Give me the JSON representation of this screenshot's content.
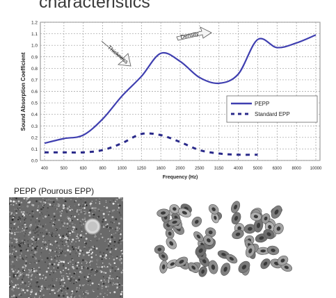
{
  "slide": {
    "title": "characteristics"
  },
  "photos": {
    "caption": "PEPP (Pourous EPP)"
  },
  "chart_data": {
    "type": "line",
    "title": "",
    "xlabel": "Frequency (Hz)",
    "ylabel": "Sound Absorption Coefficient",
    "categories": [
      "400",
      "500",
      "630",
      "800",
      "1000",
      "1250",
      "1600",
      "2000",
      "2500",
      "3150",
      "4000",
      "5000",
      "6300",
      "8000",
      "10000"
    ],
    "ylim": [
      0,
      1.2
    ],
    "yticks": [
      0,
      0.1,
      0.2,
      0.3,
      0.4,
      0.5,
      0.6,
      0.7,
      0.8,
      0.9,
      1.0,
      1.1,
      1.2
    ],
    "grid": true,
    "legend_position": "lower-right",
    "series": [
      {
        "name": "PEPP",
        "style": "solid",
        "color": "#3f3fb0",
        "values": [
          0.15,
          0.19,
          0.22,
          0.36,
          0.56,
          0.73,
          0.93,
          0.86,
          0.72,
          0.67,
          0.75,
          1.05,
          0.98,
          1.02,
          1.09
        ]
      },
      {
        "name": "Standard EPP",
        "style": "dashed",
        "color": "#2a2a8a",
        "values": [
          0.07,
          0.07,
          0.07,
          0.09,
          0.15,
          0.23,
          0.22,
          0.16,
          0.09,
          0.06,
          0.05,
          0.05,
          null,
          null,
          null
        ]
      }
    ],
    "annotations": [
      {
        "text": "Thickness",
        "direction": "up-right"
      },
      {
        "text": "Density",
        "direction": "right"
      }
    ]
  }
}
